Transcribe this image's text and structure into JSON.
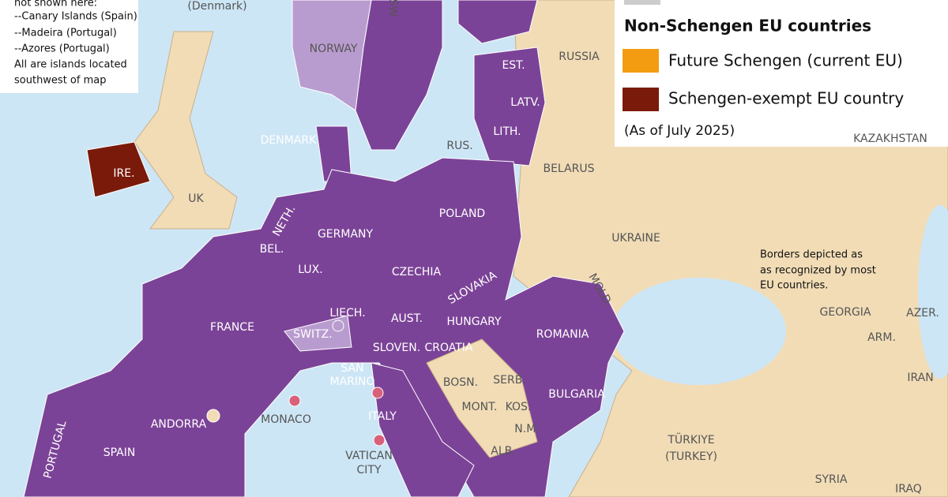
{
  "notes": {
    "lines": [
      "not shown here:",
      "--Canary Islands (Spain)",
      "--Madeira (Portugal)",
      "--Azores (Portugal)",
      "All are islands located",
      "southwest of map"
    ]
  },
  "legend": {
    "title": "Non-Schengen EU countries",
    "items": [
      {
        "label": "Future Schengen (current EU)"
      },
      {
        "label": "Schengen-exempt EU country"
      }
    ],
    "date": "(As of July 2025)"
  },
  "borders_note": {
    "lines": [
      "Borders depicted as",
      "as recognized by most",
      "EU countries."
    ]
  },
  "labels": [
    "(Denmark)",
    "SW",
    "NORWAY",
    "RUSSIA",
    "EST.",
    "LATV.",
    "LITH.",
    "RUS.",
    "DENMARK",
    "IRE.",
    "UK",
    "BELARUS",
    "KAZAKHSTAN",
    "POLAND",
    "NETH.",
    "GERMANY",
    "BEL.",
    "LUX.",
    "CZECHIA",
    "UKRAINE",
    "SLOVAKIA",
    "MOLD.",
    "FRANCE",
    "LIECH.",
    "AUST.",
    "HUNGARY",
    "ROMANIA",
    "SWITZ.",
    "SLOVEN.",
    "CROATIA",
    "SAN",
    "MARINO",
    "GEORGIA",
    "AZER.",
    "ARM.",
    "IRAN",
    "BOSN.",
    "SERB.",
    "MONT.",
    "KOS.",
    "N.M.",
    "ALB.",
    "BULGARIA",
    "ANDORRA",
    "MONACO",
    "ITALY",
    "VATICAN",
    "CITY",
    "SPAIN",
    "PORTUGAL",
    "TÜRKIYE",
    "(TURKEY)",
    "SYRIA",
    "IRAQ"
  ]
}
